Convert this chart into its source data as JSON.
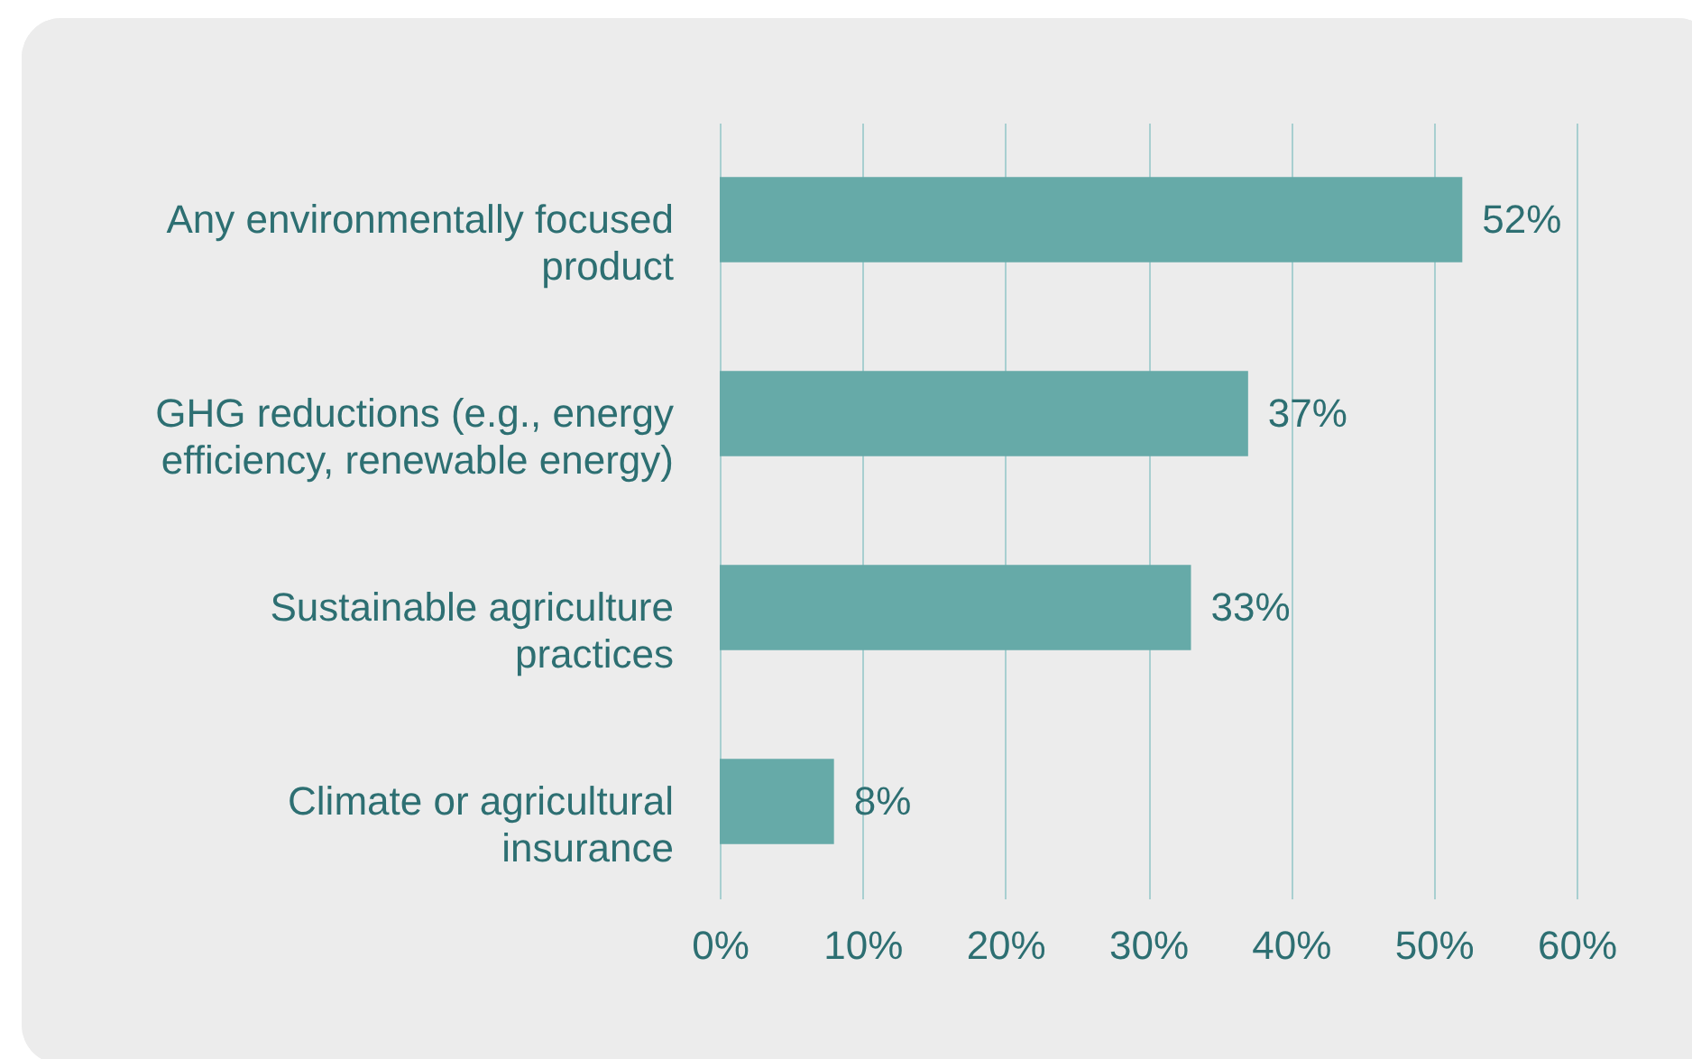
{
  "chart_data": {
    "type": "bar",
    "orientation": "horizontal",
    "categories": [
      "Any environmentally focused product",
      "GHG reductions (e.g., energy efficiency, renewable energy)",
      "Sustainable agriculture practices",
      "Climate or agricultural insurance"
    ],
    "values": [
      52,
      37,
      33,
      8
    ],
    "value_labels": [
      "52%",
      "37%",
      "33%",
      "8%"
    ],
    "color": "#66aaa8",
    "xlim": [
      0,
      60
    ],
    "xticks": [
      {
        "value": 0,
        "label": "0%"
      },
      {
        "value": 10,
        "label": "10%"
      },
      {
        "value": 20,
        "label": "20%"
      },
      {
        "value": 30,
        "label": "30%"
      },
      {
        "value": 40,
        "label": "40%"
      },
      {
        "value": 50,
        "label": "50%"
      },
      {
        "value": 60,
        "label": "60%"
      }
    ],
    "grid": "x"
  }
}
